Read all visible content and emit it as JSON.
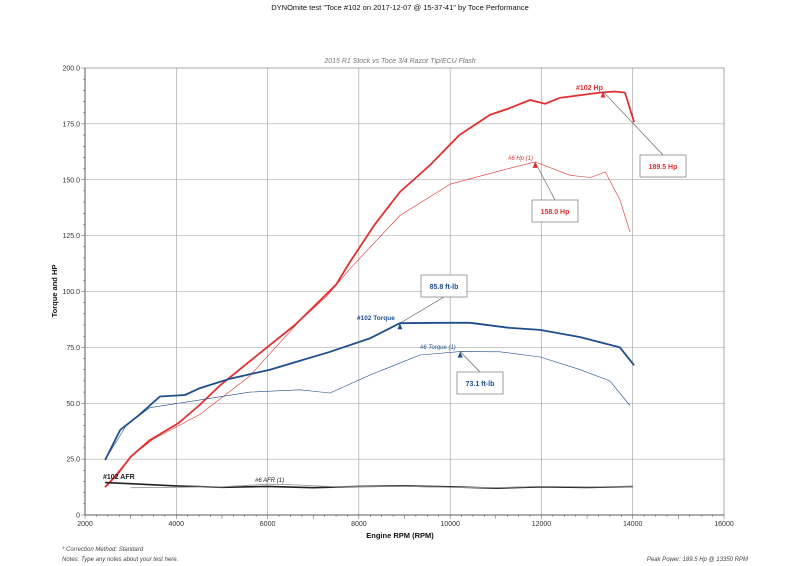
{
  "header": {
    "title": "DYNOmite test \"Toce  #102 on 2017-12-07 @ 15-37-41\" by Toce Performance"
  },
  "footer": {
    "correction": "* Correction Method: Standard",
    "notes": "Notes: Type any notes about your test here.",
    "peak": "Peak Power: 189.5 Hp @ 13350 RPM"
  },
  "chart_data": {
    "type": "line",
    "title": "2015 R1 Stock vs Toce 3/4 Razor Tip/ECU Flash",
    "xlabel": "Engine RPM (RPM)",
    "ylabel": "Torque and HP",
    "xlim": [
      2000,
      16000
    ],
    "ylim": [
      0,
      200
    ],
    "xticks": [
      "2000",
      "4000",
      "6000",
      "8000",
      "10000",
      "12000",
      "14000",
      "16000"
    ],
    "yticks": [
      "0",
      "25.0",
      "50.0",
      "75.0",
      "100.0",
      "125.0",
      "150.0",
      "175.0",
      "200.0"
    ],
    "grid": true,
    "colors": {
      "hp": "#e03030",
      "torque": "#1f4e8c",
      "afr": "#222222",
      "thin": "#999999"
    },
    "series": [
      {
        "name": "#102 Hp",
        "style": "red-thick",
        "points": [
          [
            2440,
            12.5
          ],
          [
            2700,
            18
          ],
          [
            3000,
            26
          ],
          [
            3420,
            33.5
          ],
          [
            4040,
            41
          ],
          [
            4500,
            49
          ],
          [
            4960,
            58
          ],
          [
            5500,
            67
          ],
          [
            6050,
            76
          ],
          [
            6600,
            85
          ],
          [
            7150,
            96
          ],
          [
            7500,
            103
          ],
          [
            7800,
            113
          ],
          [
            8350,
            130
          ],
          [
            8900,
            144.5
          ],
          [
            9560,
            156.6
          ],
          [
            10200,
            170
          ],
          [
            10870,
            179
          ],
          [
            11300,
            182
          ],
          [
            11750,
            185.7
          ],
          [
            12080,
            184
          ],
          [
            12400,
            186.6
          ],
          [
            13280,
            189
          ],
          [
            13600,
            189.5
          ],
          [
            13830,
            189
          ],
          [
            14030,
            175.8
          ]
        ]
      },
      {
        "name": "#6 Hp (1)",
        "style": "red-thin",
        "points": [
          [
            2440,
            12.5
          ],
          [
            3000,
            26
          ],
          [
            3500,
            34
          ],
          [
            4520,
            45
          ],
          [
            5600,
            62
          ],
          [
            6710,
            87
          ],
          [
            7300,
            98
          ],
          [
            7800,
            110
          ],
          [
            8900,
            134
          ],
          [
            10000,
            148
          ],
          [
            11090,
            154
          ],
          [
            11860,
            158
          ],
          [
            12630,
            152
          ],
          [
            13070,
            151
          ],
          [
            13400,
            153.5
          ],
          [
            13720,
            141
          ],
          [
            13940,
            126.6
          ]
        ]
      },
      {
        "name": "#102 Torque",
        "style": "blue-thick",
        "points": [
          [
            2440,
            24.6
          ],
          [
            2770,
            38
          ],
          [
            3200,
            45
          ],
          [
            3640,
            53
          ],
          [
            4190,
            53.7
          ],
          [
            4520,
            56.8
          ],
          [
            5180,
            61
          ],
          [
            6050,
            65
          ],
          [
            6710,
            69
          ],
          [
            7370,
            73
          ],
          [
            8240,
            79
          ],
          [
            8900,
            85.8
          ],
          [
            9780,
            86
          ],
          [
            10440,
            86
          ],
          [
            11310,
            83.7
          ],
          [
            11970,
            82.8
          ],
          [
            12850,
            79.6
          ],
          [
            13720,
            75
          ],
          [
            14030,
            67
          ]
        ]
      },
      {
        "name": "#6 Torque (1)",
        "style": "blue-thin",
        "points": [
          [
            2440,
            24.6
          ],
          [
            2900,
            40
          ],
          [
            3420,
            48
          ],
          [
            4520,
            51.5
          ],
          [
            5620,
            55
          ],
          [
            6710,
            56
          ],
          [
            7370,
            54.6
          ],
          [
            8240,
            62.6
          ],
          [
            9340,
            71.6
          ],
          [
            10220,
            73.1
          ],
          [
            11090,
            73
          ],
          [
            11970,
            70.7
          ],
          [
            12850,
            65
          ],
          [
            13500,
            60
          ],
          [
            13940,
            49
          ]
        ]
      },
      {
        "name": "#102 AFR",
        "style": "black-thick",
        "points": [
          [
            2440,
            14.5
          ],
          [
            3000,
            14
          ],
          [
            4000,
            13
          ],
          [
            5000,
            12.4
          ],
          [
            6000,
            12.8
          ],
          [
            7000,
            12.2
          ],
          [
            8000,
            12.8
          ],
          [
            9000,
            13
          ],
          [
            10000,
            12.6
          ],
          [
            11000,
            12
          ],
          [
            12000,
            12.6
          ],
          [
            13000,
            12.3
          ],
          [
            14000,
            12.7
          ]
        ]
      },
      {
        "name": "#6 AFR (1)",
        "style": "gray-thin",
        "points": [
          [
            3000,
            12.2
          ],
          [
            4000,
            12.4
          ],
          [
            5000,
            12.6
          ],
          [
            6000,
            13.8
          ],
          [
            6500,
            13.6
          ],
          [
            7500,
            12.6
          ],
          [
            9000,
            12.8
          ],
          [
            10000,
            12.4
          ],
          [
            11000,
            12.2
          ],
          [
            12000,
            12.8
          ],
          [
            13000,
            12.6
          ],
          [
            14000,
            12.6
          ]
        ]
      }
    ],
    "annotations": [
      {
        "text": "189.5 Hp",
        "series": "#102 Hp",
        "rpm": 13350,
        "value": 189.5
      },
      {
        "text": "158.0 Hp",
        "series": "#6 Hp (1)",
        "rpm": 11860,
        "value": 158.0
      },
      {
        "text": "85.8 ft-lb",
        "series": "#102 Torque",
        "rpm": 8900,
        "value": 85.8
      },
      {
        "text": "73.1 ft-lb",
        "series": "#6 Torque (1)",
        "rpm": 10220,
        "value": 73.1
      }
    ]
  }
}
